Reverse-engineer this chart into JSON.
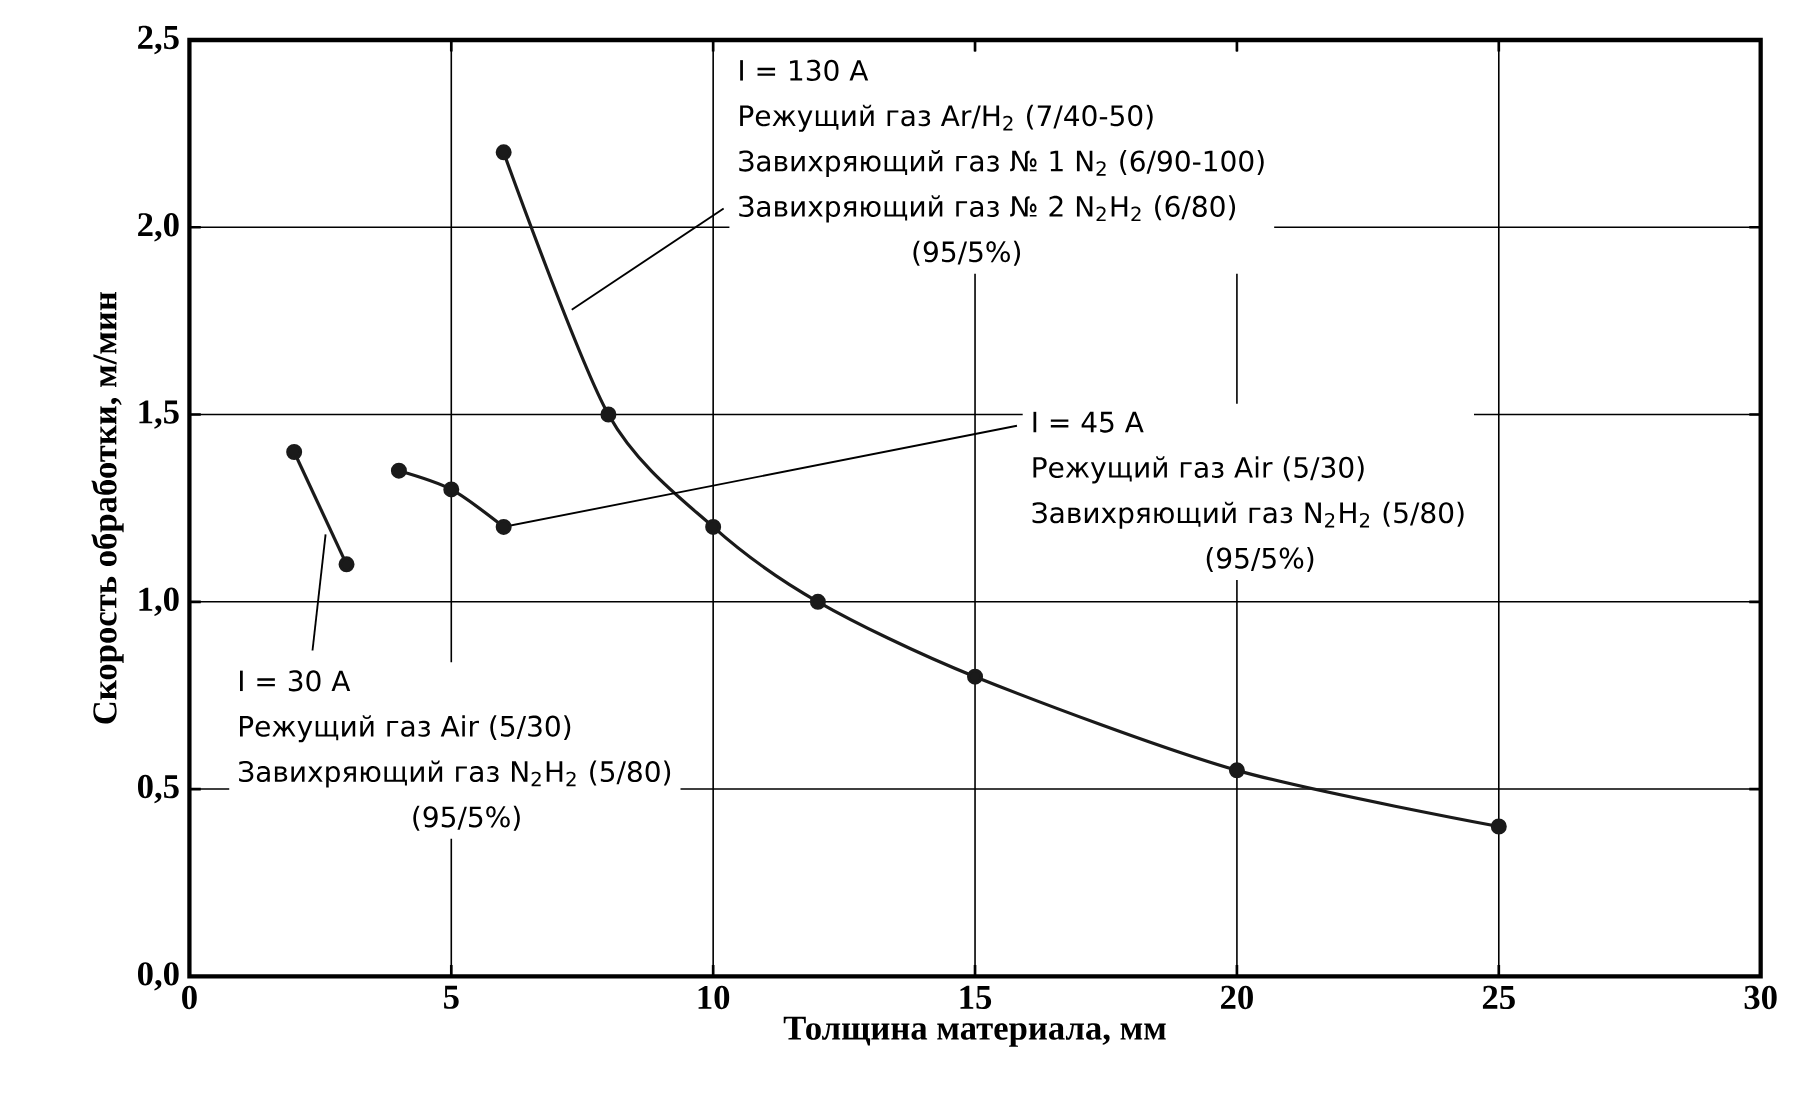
{
  "chart_data": {
    "type": "line",
    "xlabel": "Толщина материала, мм",
    "ylabel": "Скорость обработки, м/мин",
    "xlim": [
      0,
      30
    ],
    "ylim": [
      0,
      2.5
    ],
    "xticks": [
      0,
      5,
      10,
      15,
      20,
      25,
      30
    ],
    "yticks": [
      {
        "value": 0,
        "label": "0,0"
      },
      {
        "value": 0.5,
        "label": "0,5"
      },
      {
        "value": 1,
        "label": "1,0"
      },
      {
        "value": 1.5,
        "label": "1,5"
      },
      {
        "value": 2,
        "label": "2,0"
      },
      {
        "value": 2.5,
        "label": "2,5"
      }
    ],
    "grid": true,
    "marker": "circle",
    "line_style": "solid",
    "series": [
      {
        "color": "#1a1a1a",
        "x": [
          6,
          8,
          10,
          12,
          15,
          20,
          25
        ],
        "values": [
          2.2,
          1.5,
          1.2,
          1.0,
          0.8,
          0.55,
          0.4
        ]
      },
      {
        "color": "#1a1a1a",
        "x": [
          4,
          5,
          6
        ],
        "values": [
          1.35,
          1.3,
          1.2
        ]
      },
      {
        "color": "#1a1a1a",
        "x": [
          2,
          3
        ],
        "values": [
          1.4,
          1.1
        ]
      }
    ],
    "annotations": [
      "I = 130 A",
      "Режущий газ Ar/H$_{2}$ (7/40-50)",
      {
        "text": "Завихряющий газ № 1 N$_{2}$ (6/90-100)",
        "x": 7.3,
        "y": 1.78
      },
      "Завихряющий газ № 2 N$_{2}$H$_{2}$ (6/80)",
      "(95/5%)",
      {
        "text": "I = 45 A",
        "x": 6,
        "y": 1.2
      },
      "Режущий газ Air (5/30)",
      "Завихряющий газ  N$_{2}$H$_{2}$ (5/80)",
      "(95/5%)",
      {
        "text": "I = 30 A",
        "x": 2.6,
        "y": 1.18
      },
      "Режущий газ Air (5/30)",
      "Завихряющий газ  N$_{2}$H$_{2}$ (5/80)",
      "(95/5%)"
    ]
  }
}
